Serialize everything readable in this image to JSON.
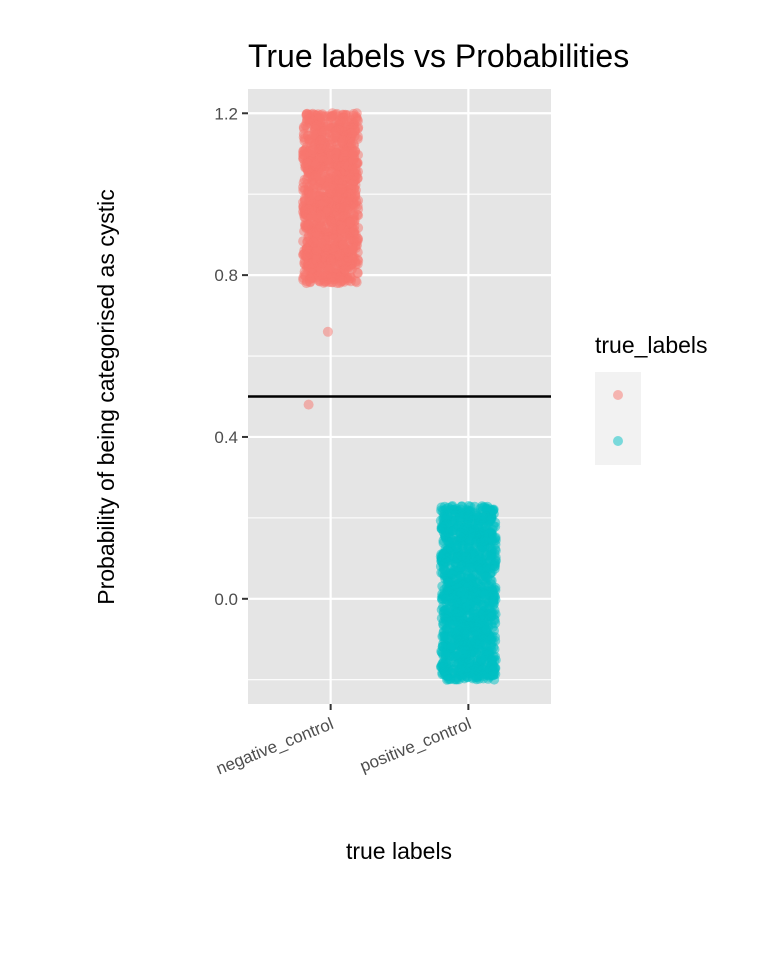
{
  "chart_data": {
    "type": "scatter",
    "title": "True labels vs Probabilities",
    "xlabel": "true labels",
    "ylabel": "Probability of being categorised as cystic",
    "categories": [
      "negative_control",
      "positive_control"
    ],
    "ylim": [
      -0.26,
      1.26
    ],
    "yticks": [
      0.0,
      0.4,
      0.8,
      1.2
    ],
    "ytick_labels": [
      "0.0",
      "0.4",
      "0.8",
      "1.2"
    ],
    "jitter": {
      "x_width": 0.2,
      "y_height": 0.2
    },
    "series": [
      {
        "name": "negative_control",
        "color": "#F8766D",
        "category_index": 0,
        "points": {
          "count": 1200,
          "y_min": 0.78,
          "y_max": 1.2
        },
        "outliers": [
          {
            "x_offset": -0.16,
            "y": 0.48
          },
          {
            "x_offset": -0.02,
            "y": 0.66
          }
        ]
      },
      {
        "name": "positive_control",
        "color": "#00BFC4",
        "category_index": 1,
        "points": {
          "count": 1200,
          "y_min": -0.2,
          "y_max": 0.23
        },
        "outliers": []
      }
    ],
    "hline": {
      "y": 0.5,
      "color": "#000000"
    },
    "grid": true,
    "panel_background": "#E5E5E5",
    "legend": {
      "title": "true_labels",
      "placement": "right",
      "show_labels": false
    }
  }
}
